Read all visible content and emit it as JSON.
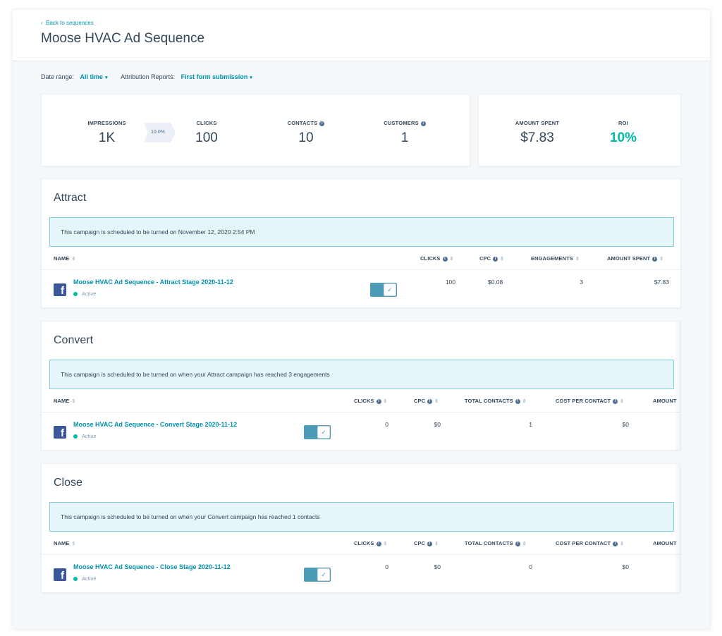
{
  "header": {
    "back_link": "Back to sequences",
    "title": "Moose HVAC Ad Sequence"
  },
  "filters": {
    "date_range_label": "Date range:",
    "date_range_value": "All time",
    "attribution_label": "Attribution Reports:",
    "attribution_value": "First form submission"
  },
  "kpis": {
    "impressions": {
      "label": "IMPRESSIONS",
      "value": "1K"
    },
    "conversion_rate": "10.0%",
    "clicks": {
      "label": "CLICKS",
      "value": "100"
    },
    "contacts": {
      "label": "CONTACTS",
      "value": "10"
    },
    "customers": {
      "label": "CUSTOMERS",
      "value": "1"
    },
    "amount_spent": {
      "label": "AMOUNT SPENT",
      "value": "$7.83"
    },
    "roi": {
      "label": "ROI",
      "value": "10%"
    }
  },
  "attract": {
    "title": "Attract",
    "notice": "This campaign is scheduled to be turned on November 12, 2020 2:54 PM",
    "columns": {
      "name": "NAME",
      "clicks": "CLICKS",
      "cpc": "CPC",
      "engagements": "ENGAGEMENTS",
      "amount_spent": "AMOUNT SPENT"
    },
    "row": {
      "name": "Moose HVAC Ad Sequence - Attract Stage 2020-11-12",
      "status": "Active",
      "clicks": "100",
      "cpc": "$0.08",
      "engagements": "3",
      "amount_spent": "$7.83",
      "enabled": true
    }
  },
  "convert": {
    "title": "Convert",
    "notice": "This campaign is scheduled to be turned on when your Attract campaign has reached 3 engagements",
    "columns": {
      "name": "NAME",
      "clicks": "CLICKS",
      "cpc": "CPC",
      "total_contacts": "TOTAL CONTACTS",
      "cost_per_contact": "COST PER CONTACT",
      "amount": "AMOUNT"
    },
    "row": {
      "name": "Moose HVAC Ad Sequence - Convert Stage 2020-11-12",
      "status": "Active",
      "clicks": "0",
      "cpc": "$0",
      "total_contacts": "1",
      "cost_per_contact": "$0",
      "enabled": true
    }
  },
  "close": {
    "title": "Close",
    "notice": "This campaign is scheduled to be turned on when your Convert campaign has reached 1 contacts",
    "columns": {
      "name": "NAME",
      "clicks": "CLICKS",
      "cpc": "CPC",
      "total_contacts": "TOTAL CONTACTS",
      "cost_per_contact": "COST PER CONTACT",
      "amount": "AMOUNT"
    },
    "row": {
      "name": "Moose HVAC Ad Sequence - Close Stage 2020-11-12",
      "status": "Active",
      "clicks": "0",
      "cpc": "$0",
      "total_contacts": "0",
      "cost_per_contact": "$0",
      "enabled": true
    }
  },
  "icons": {
    "back": "chevron-left-icon",
    "dropdown": "caret-down-icon",
    "info": "info-icon",
    "sort": "sort-icon",
    "facebook": "facebook-icon",
    "toggle_check": "check-icon"
  },
  "colors": {
    "accent_link": "#0091ae",
    "roi_green": "#00bda5",
    "notice_bg": "#e5f5f8",
    "toggle": "#4c9bb7",
    "facebook": "#3b5998"
  }
}
